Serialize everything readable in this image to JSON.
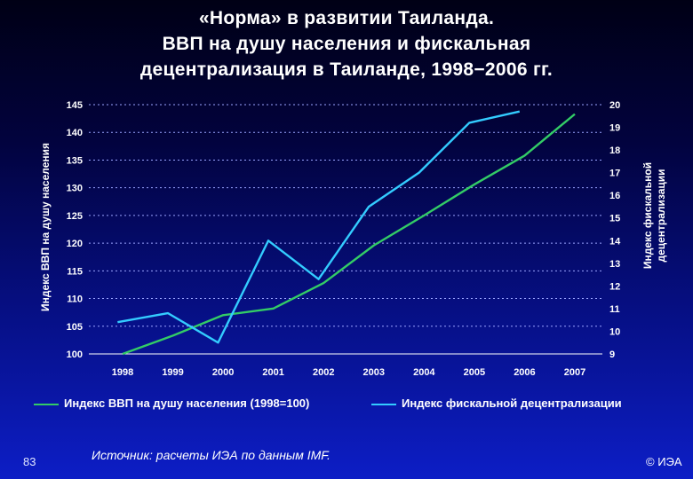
{
  "title": {
    "line1": "«Норма» в развитии Таиланда.",
    "line2": "ВВП на душу населения и фискальная",
    "line3": "децентрализация в Таиланде, 1998−2006 гг."
  },
  "colors": {
    "gdp": "#33cc66",
    "fiscal": "#33ccff",
    "grid": "#9aa4ff"
  },
  "chart_data": {
    "type": "line",
    "x": [
      "1998",
      "1999",
      "2000",
      "2001",
      "2002",
      "2003",
      "2004",
      "2005",
      "2006",
      "2007"
    ],
    "ylabel": "Индекс ВВП на душу населения",
    "y2label": "Индекс фискальной децентрализации",
    "ylim": [
      100,
      145
    ],
    "y2lim": [
      9,
      20
    ],
    "yticks": [
      100,
      105,
      110,
      115,
      120,
      125,
      130,
      135,
      140,
      145
    ],
    "y2ticks": [
      9,
      10,
      11,
      12,
      13,
      14,
      15,
      16,
      17,
      18,
      19,
      20
    ],
    "grid": true,
    "legend": "bottom",
    "series": [
      {
        "name": "Индекс ВВП на душу населения (1998=100)",
        "axis": "left",
        "x": [
          1998,
          1999,
          2000,
          2001,
          2002,
          2003,
          2004,
          2005,
          2006,
          2007
        ],
        "values": [
          100,
          103.3,
          107,
          108.2,
          112.8,
          119.6,
          125,
          130.6,
          135.8,
          143.3
        ]
      },
      {
        "name": "Индекс фискальной децентрализации",
        "axis": "right",
        "x": [
          1997.9,
          1998.9,
          1999.9,
          2000.9,
          2001.9,
          2002.9,
          2003.9,
          2004.9,
          2005.9
        ],
        "values": [
          10.4,
          10.8,
          9.5,
          14.0,
          12.3,
          15.5,
          17.0,
          19.2,
          19.7
        ]
      }
    ]
  },
  "footer": {
    "page": "83",
    "source": "Источник: расчеты ИЭА по данным IMF.",
    "copyright": "© ИЭА"
  }
}
